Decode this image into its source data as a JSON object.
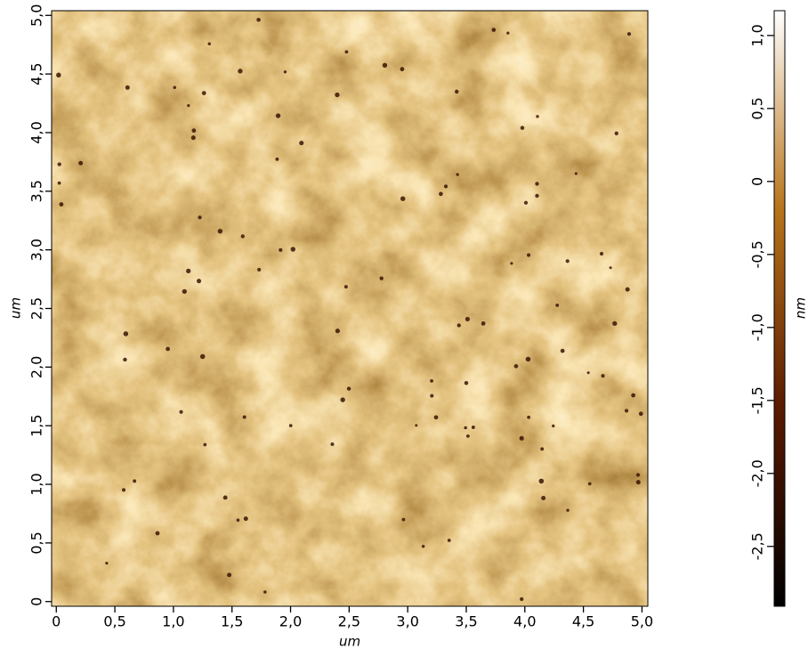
{
  "chart_data": {
    "type": "heatmap",
    "x_label": "um",
    "y_label": "um",
    "colorbar_label": "nm",
    "xlim": [
      -0.04,
      5.05
    ],
    "ylim": [
      -0.04,
      5.04
    ],
    "xticks": [
      0,
      {
        "value": 0.5,
        "label": "0,5"
      },
      {
        "value": 1.0,
        "label": "1,0"
      },
      {
        "value": 1.5,
        "label": "1,5"
      },
      {
        "value": 2.0,
        "label": "2,0"
      },
      {
        "value": 2.5,
        "label": "2,5"
      },
      {
        "value": 3.0,
        "label": "3,0"
      },
      {
        "value": 3.5,
        "label": "3,5"
      },
      {
        "value": 4.0,
        "label": "4,0"
      },
      {
        "value": 4.5,
        "label": "4,5"
      },
      {
        "value": 5.0,
        "label": "5,0"
      }
    ],
    "yticks": [
      0,
      {
        "value": 0.5,
        "label": "0,5"
      },
      {
        "value": 1.0,
        "label": "1,0"
      },
      {
        "value": 1.5,
        "label": "1,5"
      },
      {
        "value": 2.0,
        "label": "2,0"
      },
      {
        "value": 2.5,
        "label": "2,5"
      },
      {
        "value": 3.0,
        "label": "3,0"
      },
      {
        "value": 3.5,
        "label": "3,5"
      },
      {
        "value": 4.0,
        "label": "4,0"
      },
      {
        "value": 4.5,
        "label": "4,5"
      },
      {
        "value": 5.0,
        "label": "5,0"
      }
    ],
    "clim": [
      -2.91,
      1.17
    ],
    "cticks": [
      {
        "value": 1.0,
        "label": "1,0"
      },
      {
        "value": 0.5,
        "label": "0,5"
      },
      0,
      {
        "value": -0.5,
        "label": "-0,5"
      },
      {
        "value": -1.0,
        "label": "-1,0"
      },
      {
        "value": -1.5,
        "label": "-1,5"
      },
      {
        "value": -2.0,
        "label": "-2,0"
      },
      {
        "value": -2.5,
        "label": "-2,5"
      }
    ],
    "colormap": [
      "#000000",
      "#5a1a00",
      "#b8741a",
      "#ffffff"
    ]
  }
}
